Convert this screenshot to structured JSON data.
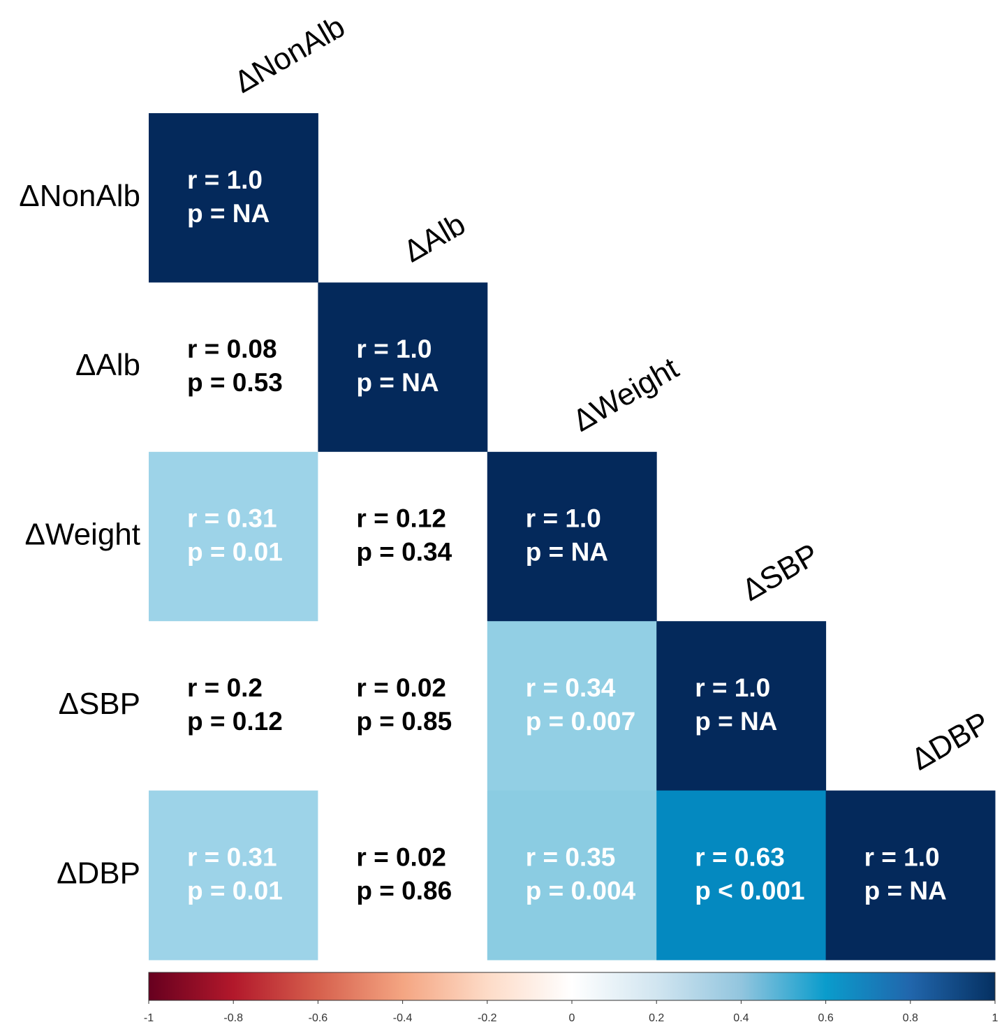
{
  "chart_data": {
    "type": "heatmap",
    "categories": [
      "ΔNonAlb",
      "ΔAlb",
      "ΔWeight",
      "ΔSBP",
      "ΔDBP"
    ],
    "values": [
      [
        1.0,
        null,
        null,
        null,
        null
      ],
      [
        0.08,
        1.0,
        null,
        null,
        null
      ],
      [
        0.31,
        0.12,
        1.0,
        null,
        null
      ],
      [
        0.2,
        0.02,
        0.34,
        1.0,
        null
      ],
      [
        0.31,
        0.02,
        0.35,
        0.63,
        1.0
      ]
    ],
    "value_labels": [
      [
        "r = 1.0",
        null,
        null,
        null,
        null
      ],
      [
        "r = 0.08",
        "r = 1.0",
        null,
        null,
        null
      ],
      [
        "r = 0.31",
        "r = 0.12",
        "r = 1.0",
        null,
        null
      ],
      [
        "r = 0.2",
        "r = 0.02",
        "r = 0.34",
        "r = 1.0",
        null
      ],
      [
        "r = 0.31",
        "r = 0.02",
        "r = 0.35",
        "r = 0.63",
        "r = 1.0"
      ]
    ],
    "p_labels": [
      [
        "p = NA",
        null,
        null,
        null,
        null
      ],
      [
        "p = 0.53",
        "p = NA",
        null,
        null,
        null
      ],
      [
        "p = 0.01",
        "p = 0.34",
        "p = NA",
        null,
        null
      ],
      [
        "p = 0.12",
        "p = 0.85",
        "p = 0.007",
        "p = NA",
        null
      ],
      [
        "p = 0.01",
        "p = 0.86",
        "p = 0.004",
        "p < 0.001",
        "p = NA"
      ]
    ],
    "colors": [
      [
        "#04295b",
        null,
        null,
        null,
        null
      ],
      [
        "#ffffff",
        "#04295b",
        null,
        null,
        null
      ],
      [
        "#9dd3e8",
        "#ffffff",
        "#04295b",
        null,
        null
      ],
      [
        "#ffffff",
        "#ffffff",
        "#92cfe4",
        "#04295b",
        null
      ],
      [
        "#9dd3e8",
        "#ffffff",
        "#8bcce2",
        "#0489c0",
        "#04295b"
      ]
    ],
    "colorscale": [
      "#67001f",
      "#b2182b",
      "#d6604d",
      "#f4a582",
      "#fddbc7",
      "#ffffff",
      "#d1e5f0",
      "#92c5de",
      "#0a9ccc",
      "#2166ac",
      "#053061"
    ],
    "colorbar_lim": [
      -1,
      1
    ],
    "colorbar_ticks": [
      -1,
      -0.8,
      -0.6,
      -0.4,
      -0.2,
      0,
      0.2,
      0.4,
      0.6,
      0.8,
      1
    ]
  }
}
